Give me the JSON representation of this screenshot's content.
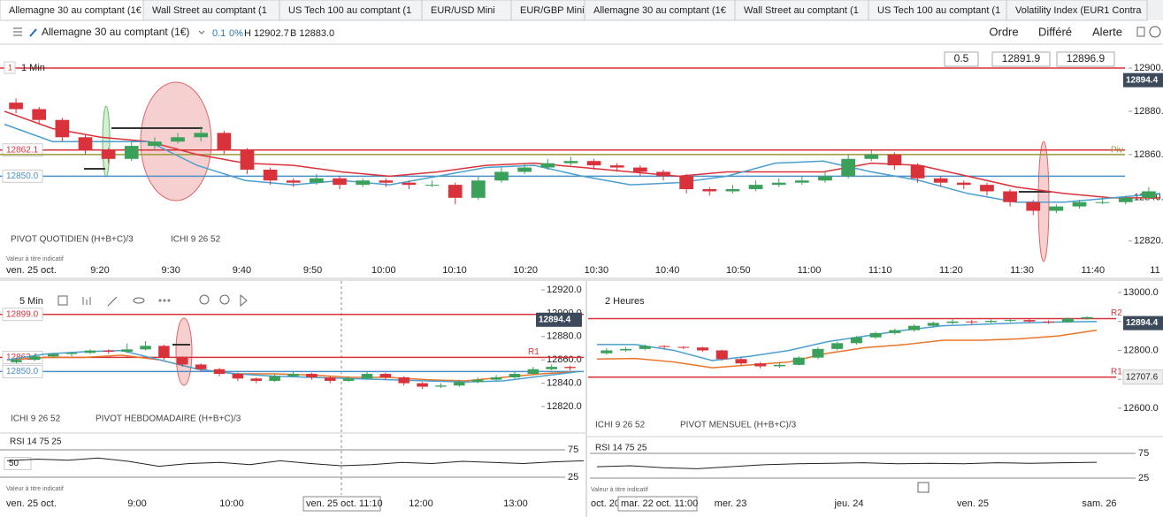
{
  "tabs": [
    "Allemagne 30 au comptant (1€",
    "Wall Street au comptant (1",
    "US Tech 100 au comptant (1",
    "EUR/USD Mini",
    "EUR/GBP Mini",
    "Allemagne 30 au comptant (1€",
    "Wall Street au comptant (1",
    "US Tech 100 au comptant (1",
    "Volatility Index (EUR1 Contra"
  ],
  "header": {
    "instrument": "Allemagne 30 au comptant (1€)",
    "change": "0.1",
    "change_pct": "0%",
    "high": "H 12902.7",
    "low": "B 12883.0",
    "buttons": [
      "Ordre",
      "Différé",
      "Alerte"
    ]
  },
  "chart_data": [
    {
      "type": "candlestick",
      "pane_label": "1",
      "timeframe": "1 Min",
      "inputs": [
        "0.5",
        "12891.9",
        "12896.9"
      ],
      "ylim": [
        12815,
        12905
      ],
      "yticks": [
        {
          "value": 12900,
          "label": "12900.0"
        },
        {
          "value": 12880,
          "label": "12880.0"
        },
        {
          "value": 12860,
          "label": "12860.0"
        },
        {
          "value": 12840,
          "label": "12840.0"
        },
        {
          "value": 12820,
          "label": "12820.0"
        }
      ],
      "levels": [
        {
          "value": 12900,
          "color": "#d9323a"
        },
        {
          "value": 12862.1,
          "label": "12862.1",
          "color": "#d9323a"
        },
        {
          "value": 12860,
          "name": "Piv",
          "color": "#9a9a3a"
        },
        {
          "value": 12850,
          "label": "12850.0",
          "color": "#4a90c8"
        }
      ],
      "last_price": 12894.4,
      "candles": [
        [
          12884,
          12886,
          12879,
          12881
        ],
        [
          12881,
          12882,
          12874,
          12876
        ],
        [
          12876,
          12877,
          12866,
          12868
        ],
        [
          12868,
          12869,
          12860,
          12862
        ],
        [
          12862,
          12863,
          12856,
          12858
        ],
        [
          12858,
          12866,
          12857,
          12864
        ],
        [
          12864,
          12868,
          12862,
          12866
        ],
        [
          12866,
          12870,
          12865,
          12868
        ],
        [
          12868,
          12873,
          12866,
          12870
        ],
        [
          12870,
          12871,
          12860,
          12862
        ],
        [
          12862,
          12863,
          12851,
          12853
        ],
        [
          12853,
          12854,
          12846,
          12848
        ],
        [
          12848,
          12849,
          12845,
          12847
        ],
        [
          12847,
          12851,
          12846,
          12849
        ],
        [
          12849,
          12850,
          12844,
          12846
        ],
        [
          12846,
          12849,
          12845,
          12848
        ],
        [
          12848,
          12849,
          12845,
          12847
        ],
        [
          12847,
          12848,
          12844,
          12846
        ],
        [
          12846,
          12848,
          12845,
          12846
        ],
        [
          12846,
          12847,
          12837,
          12840
        ],
        [
          12840,
          12850,
          12839,
          12848
        ],
        [
          12848,
          12854,
          12847,
          12852
        ],
        [
          12852,
          12856,
          12851,
          12854
        ],
        [
          12854,
          12858,
          12853,
          12856
        ],
        [
          12856,
          12859,
          12855,
          12857
        ],
        [
          12857,
          12858,
          12853,
          12855
        ],
        [
          12855,
          12856,
          12852,
          12854
        ],
        [
          12854,
          12855,
          12850,
          12852
        ],
        [
          12852,
          12853,
          12848,
          12850
        ],
        [
          12850,
          12851,
          12842,
          12844
        ],
        [
          12844,
          12845,
          12841,
          12843
        ],
        [
          12843,
          12846,
          12842,
          12844
        ],
        [
          12844,
          12848,
          12843,
          12846
        ],
        [
          12846,
          12849,
          12845,
          12847
        ],
        [
          12847,
          12850,
          12846,
          12848
        ],
        [
          12848,
          12852,
          12847,
          12850
        ],
        [
          12850,
          12860,
          12849,
          12858
        ],
        [
          12858,
          12862,
          12857,
          12860
        ],
        [
          12860,
          12861,
          12853,
          12855
        ],
        [
          12855,
          12856,
          12847,
          12849
        ],
        [
          12849,
          12850,
          12845,
          12847
        ],
        [
          12847,
          12848,
          12844,
          12846
        ],
        [
          12846,
          12847,
          12841,
          12843
        ],
        [
          12843,
          12844,
          12836,
          12838
        ],
        [
          12838,
          12839,
          12832,
          12834
        ],
        [
          12834,
          12837,
          12833,
          12836
        ],
        [
          12836,
          12839,
          12835,
          12838
        ],
        [
          12838,
          12840,
          12837,
          12838
        ],
        [
          12838,
          12841,
          12837,
          12840
        ],
        [
          12840,
          12845,
          12839,
          12843
        ]
      ],
      "lines": [
        {
          "color": "#d9323a",
          "values": [
            12880,
            12872,
            12868,
            12866,
            12860,
            12856,
            12855,
            12852,
            12850,
            12852,
            12855,
            12856,
            12854,
            12852,
            12850,
            12852,
            12852,
            12852,
            12856,
            12855,
            12850,
            12845,
            12842,
            12840,
            12840
          ]
        },
        {
          "color": "#4a9fd0",
          "values": [
            12874,
            12866,
            12866,
            12866,
            12855,
            12848,
            12846,
            12848,
            12846,
            12850,
            12854,
            12855,
            12850,
            12846,
            12847,
            12850,
            12856,
            12857,
            12852,
            12848,
            12842,
            12838,
            12838,
            12840,
            12842
          ]
        }
      ],
      "indicators": [
        "PIVOT QUOTIDIEN (H+B+C)/3",
        "ICHI 9 26 52"
      ],
      "note": "Valeur à titre indicatif",
      "date_label": "ven. 25 oct.",
      "xticks": [
        "9:20",
        "9:30",
        "9:40",
        "9:50",
        "10:00",
        "10:10",
        "10:20",
        "10:30",
        "10:40",
        "10:50",
        "11:00",
        "11:10",
        "11:20",
        "11:30",
        "11:40",
        "11"
      ]
    },
    {
      "type": "candlestick",
      "timeframe": "5 Min",
      "ylim": [
        12810,
        12925
      ],
      "yticks": [
        {
          "value": 12920,
          "label": "12920.0"
        },
        {
          "value": 12900,
          "label": "12900.0"
        },
        {
          "value": 12880,
          "label": "12880.0"
        },
        {
          "value": 12860,
          "label": "12860.0"
        },
        {
          "value": 12840,
          "label": "12840.0"
        },
        {
          "value": 12820,
          "label": "12820.0"
        }
      ],
      "levels": [
        {
          "value": 12899,
          "label": "12899.0",
          "color": "#d9323a"
        },
        {
          "value": 12862.1,
          "label": "12862.1",
          "name": "R1",
          "color": "#d9323a"
        },
        {
          "value": 12850,
          "label": "12850.0",
          "color": "#4a90c8"
        }
      ],
      "last_price": 12894.4,
      "candles": [
        [
          12858,
          12862,
          12857,
          12860
        ],
        [
          12860,
          12864,
          12859,
          12863
        ],
        [
          12863,
          12866,
          12862,
          12865
        ],
        [
          12865,
          12867,
          12863,
          12866
        ],
        [
          12866,
          12869,
          12865,
          12868
        ],
        [
          12868,
          12869,
          12865,
          12867
        ],
        [
          12867,
          12874,
          12866,
          12869
        ],
        [
          12869,
          12876,
          12868,
          12872
        ],
        [
          12872,
          12873,
          12860,
          12862
        ],
        [
          12862,
          12863,
          12854,
          12856
        ],
        [
          12856,
          12857,
          12850,
          12852
        ],
        [
          12852,
          12853,
          12846,
          12848
        ],
        [
          12848,
          12849,
          12842,
          12844
        ],
        [
          12844,
          12845,
          12840,
          12842
        ],
        [
          12842,
          12848,
          12841,
          12846
        ],
        [
          12846,
          12850,
          12845,
          12848
        ],
        [
          12848,
          12849,
          12843,
          12845
        ],
        [
          12845,
          12846,
          12840,
          12842
        ],
        [
          12842,
          12846,
          12841,
          12844
        ],
        [
          12844,
          12850,
          12843,
          12848
        ],
        [
          12848,
          12849,
          12843,
          12845
        ],
        [
          12845,
          12846,
          12838,
          12840
        ],
        [
          12840,
          12841,
          12835,
          12837
        ],
        [
          12837,
          12840,
          12836,
          12838
        ],
        [
          12838,
          12843,
          12837,
          12841
        ],
        [
          12841,
          12845,
          12840,
          12843
        ],
        [
          12843,
          12847,
          12842,
          12845
        ],
        [
          12845,
          12850,
          12844,
          12848
        ],
        [
          12848,
          12854,
          12847,
          12852
        ],
        [
          12852,
          12856,
          12851,
          12854
        ],
        [
          12854,
          12855,
          12851,
          12853
        ]
      ],
      "lines": [
        {
          "color": "#e8742a",
          "values": [
            12860,
            12862,
            12862,
            12864,
            12860,
            12852,
            12848,
            12848,
            12847,
            12845,
            12845,
            12843,
            12842,
            12845,
            12848,
            12850
          ]
        },
        {
          "color": "#4a9fd0",
          "values": [
            12860,
            12865,
            12867,
            12868,
            12860,
            12852,
            12848,
            12846,
            12845,
            12844,
            12843,
            12842,
            12841,
            12842,
            12846,
            12850
          ]
        }
      ],
      "indicators": [
        "ICHI 9 26 52",
        "PIVOT HEBDOMADAIRE (H+B+C)/3"
      ],
      "note": "Valeur à titre indicatif",
      "date_label": "ven. 25 oct.",
      "cursor_label": "ven. 25 oct. 11:10",
      "xticks": [
        "9:00",
        "10:00",
        "12:00",
        "13:00"
      ],
      "rsi": {
        "title": "RSI 14 75 25",
        "ylim": [
          0,
          100
        ],
        "yticks": [
          75,
          25
        ],
        "marker": 50,
        "values": [
          55,
          58,
          56,
          60,
          54,
          45,
          50,
          52,
          48,
          55,
          50,
          46,
          48,
          52,
          50,
          54,
          52,
          50,
          53,
          55
        ]
      }
    },
    {
      "type": "candlestick",
      "timeframe": "2 Heures",
      "ylim": [
        12560,
        13020
      ],
      "yticks": [
        {
          "value": 13000,
          "label": "13000.0"
        },
        {
          "value": 12900,
          "label": "12900.0"
        },
        {
          "value": 12800,
          "label": "12800.0"
        },
        {
          "value": 12700,
          "label": "12700.0"
        },
        {
          "value": 12600,
          "label": "12600.0"
        }
      ],
      "levels": [
        {
          "value": 12910,
          "name": "R2",
          "color": "#d9323a"
        },
        {
          "value": 12707.6,
          "label": "12707.6",
          "name": "R1",
          "color": "#d9323a"
        }
      ],
      "last_price": 12894.4,
      "candles": [
        [
          12790,
          12808,
          12785,
          12800
        ],
        [
          12800,
          12812,
          12795,
          12805
        ],
        [
          12805,
          12820,
          12800,
          12815
        ],
        [
          12815,
          12818,
          12806,
          12812
        ],
        [
          12812,
          12815,
          12805,
          12810
        ],
        [
          12810,
          12812,
          12795,
          12800
        ],
        [
          12800,
          12802,
          12765,
          12770
        ],
        [
          12770,
          12775,
          12748,
          12755
        ],
        [
          12755,
          12760,
          12738,
          12745
        ],
        [
          12745,
          12758,
          12740,
          12750
        ],
        [
          12750,
          12780,
          12748,
          12775
        ],
        [
          12775,
          12812,
          12770,
          12805
        ],
        [
          12805,
          12830,
          12800,
          12825
        ],
        [
          12825,
          12850,
          12820,
          12845
        ],
        [
          12845,
          12865,
          12840,
          12860
        ],
        [
          12860,
          12875,
          12855,
          12870
        ],
        [
          12870,
          12890,
          12865,
          12885
        ],
        [
          12885,
          12900,
          12880,
          12895
        ],
        [
          12895,
          12908,
          12890,
          12900
        ],
        [
          12900,
          12905,
          12890,
          12898
        ],
        [
          12898,
          12908,
          12895,
          12902
        ],
        [
          12902,
          12912,
          12898,
          12905
        ],
        [
          12905,
          12908,
          12895,
          12900
        ],
        [
          12900,
          12904,
          12892,
          12898
        ],
        [
          12898,
          12914,
          12896,
          12910
        ],
        [
          12910,
          12918,
          12906,
          12915
        ]
      ],
      "lines": [
        {
          "color": "#4a9fd0",
          "values": [
            12820,
            12820,
            12800,
            12765,
            12780,
            12800,
            12830,
            12850,
            12870,
            12885,
            12890,
            12895,
            12898,
            12900
          ]
        },
        {
          "color": "#e8742a",
          "values": [
            12770,
            12772,
            12760,
            12740,
            12750,
            12760,
            12790,
            12810,
            12820,
            12835,
            12835,
            12840,
            12850,
            12870
          ]
        }
      ],
      "indicators": [
        "ICHI 9 26 52",
        "PIVOT MENSUEL (H+B+C)/3"
      ],
      "note": "Valeur à titre indicatif",
      "date_label": "oct. 20",
      "cursor_label": "mar. 22 oct. 11:00",
      "xticks": [
        "mer. 23",
        "jeu. 24",
        "ven. 25",
        "sam. 26"
      ],
      "rsi": {
        "title": "RSI 14 75 25",
        "ylim": [
          0,
          100
        ],
        "yticks": [
          75,
          25
        ],
        "values": [
          48,
          50,
          46,
          44,
          48,
          52,
          54,
          55,
          56,
          54,
          55,
          54,
          56,
          55,
          56,
          57
        ]
      }
    }
  ]
}
